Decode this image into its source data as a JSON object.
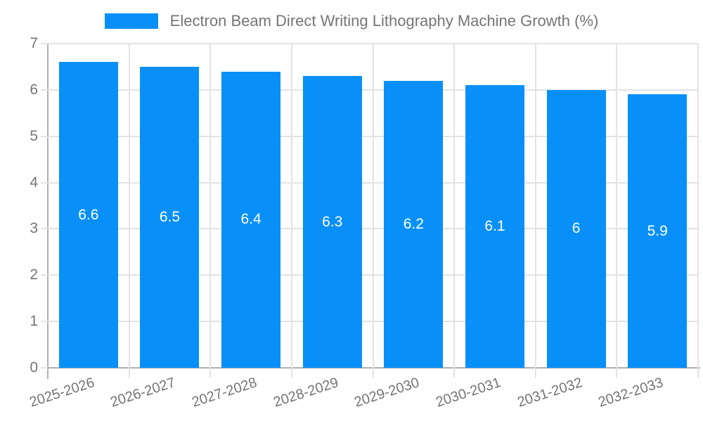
{
  "legend": {
    "label": "Electron Beam Direct Writing Lithography Machine Growth (%)"
  },
  "colors": {
    "background": "#ffffff",
    "bar": "#0890f8",
    "grid": "#e3e3e3",
    "axis": "#b0b0b0",
    "text": "#757575",
    "bar_label": "#ffffff"
  },
  "chart_data": {
    "type": "bar",
    "title": "Electron Beam Direct Writing Lithography Machine Growth (%)",
    "categories": [
      "2025-2026",
      "2026-2027",
      "2027-2028",
      "2028-2029",
      "2029-2030",
      "2030-2031",
      "2031-2032",
      "2032-2033"
    ],
    "values": [
      6.6,
      6.5,
      6.4,
      6.3,
      6.2,
      6.1,
      6,
      5.9
    ],
    "value_labels": [
      "6.6",
      "6.5",
      "6.4",
      "6.3",
      "6.2",
      "6.1",
      "6",
      "5.9"
    ],
    "xlabel": "",
    "ylabel": "",
    "ylim": [
      0,
      7
    ],
    "yticks": [
      0,
      1,
      2,
      3,
      4,
      5,
      6,
      7
    ],
    "grid": true,
    "legend_position": "top",
    "x_label_rotation_deg": -18
  }
}
